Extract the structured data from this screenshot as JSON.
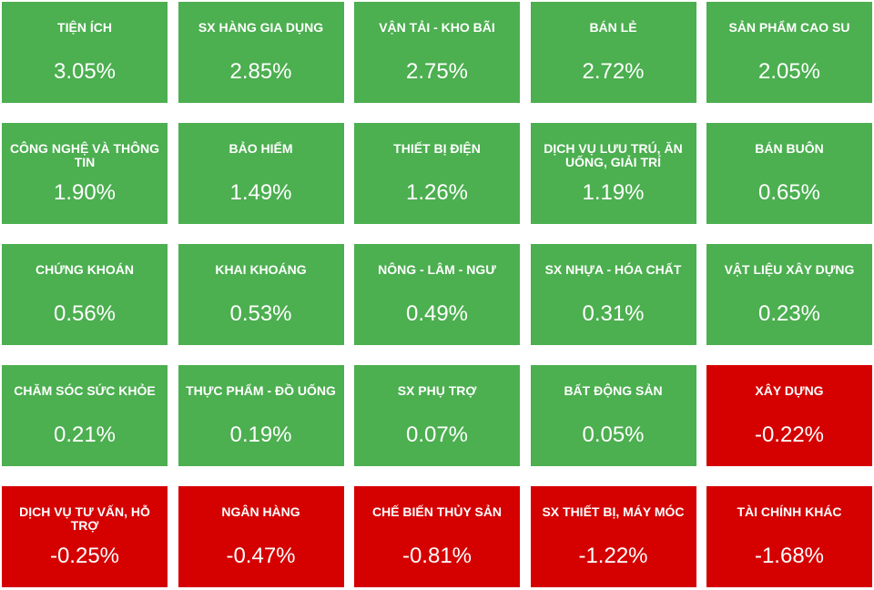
{
  "chart_data": {
    "type": "tiles",
    "categories": [
      "TIỆN ÍCH",
      "SX HÀNG GIA DỤNG",
      "VẬN TẢI - KHO BÃI",
      "BÁN LẺ",
      "SẢN PHẨM CAO SU",
      "CÔNG NGHỆ VÀ THÔNG TIN",
      "BẢO HIỂM",
      "THIẾT BỊ ĐIỆN",
      "DỊCH VỤ LƯU TRÚ, ĂN UỐNG, GIẢI TRÍ",
      "BÁN BUÔN",
      "CHỨNG KHOÁN",
      "KHAI KHOÁNG",
      "NÔNG - LÂM - NGƯ",
      "SX NHỰA - HÓA CHẤT",
      "VẬT LIỆU XÂY DỰNG",
      "CHĂM SÓC SỨC KHỎE",
      "THỰC PHẨM - ĐỒ UỐNG",
      "SX PHỤ TRỢ",
      "BẤT ĐỘNG SẢN",
      "XÂY DỰNG",
      "DỊCH VỤ TƯ VẤN, HỖ TRỢ",
      "NGÂN HÀNG",
      "CHẾ BIẾN THỦY SẢN",
      "SX THIẾT BỊ, MÁY MÓC",
      "TÀI CHÍNH KHÁC"
    ],
    "values": [
      3.05,
      2.85,
      2.75,
      2.72,
      2.05,
      1.9,
      1.49,
      1.26,
      1.19,
      0.65,
      0.56,
      0.53,
      0.49,
      0.31,
      0.23,
      0.21,
      0.19,
      0.07,
      0.05,
      -0.22,
      -0.25,
      -0.47,
      -0.81,
      -1.22,
      -1.68
    ],
    "value_labels": [
      "3.05%",
      "2.85%",
      "2.75%",
      "2.72%",
      "2.05%",
      "1.90%",
      "1.49%",
      "1.26%",
      "1.19%",
      "0.65%",
      "0.56%",
      "0.53%",
      "0.49%",
      "0.31%",
      "0.23%",
      "0.21%",
      "0.19%",
      "0.07%",
      "0.05%",
      "-0.22%",
      "-0.25%",
      "-0.47%",
      "-0.81%",
      "-1.22%",
      "-1.68%"
    ],
    "positive_color": "#4caf50",
    "negative_color": "#d50000"
  }
}
